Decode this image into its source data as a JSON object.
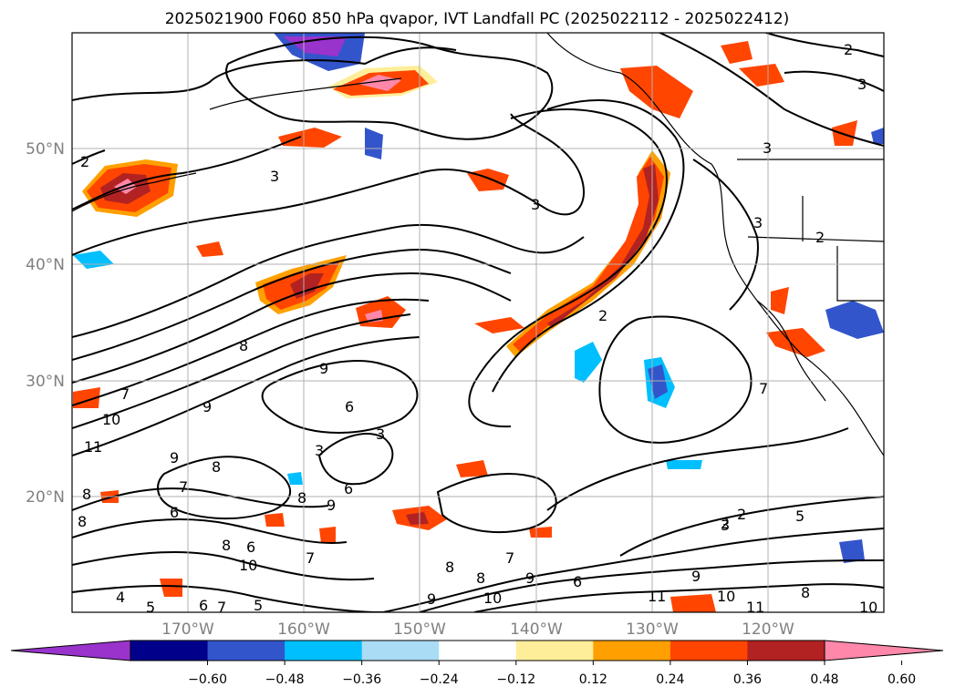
{
  "title": "2025021900 F060 850 hPa qvapor, IVT Landfall PC (2025022112 - 2025022412)",
  "lon_labels": [
    "170°W",
    "160°W",
    "150°W",
    "140°W",
    "130°W",
    "120°W"
  ],
  "lat_labels": [
    "50°N",
    "40°N",
    "30°N",
    "20°N"
  ],
  "colorbar": {
    "ticks": [
      "−0.60",
      "−0.48",
      "−0.36",
      "−0.24",
      "−0.12",
      "0.12",
      "0.24",
      "0.36",
      "0.48",
      "0.60"
    ],
    "under_color": "#9933cc",
    "over_color": "#ff88aa",
    "colors": [
      "#00008b",
      "#3355cc",
      "#00bfff",
      "#aadcf6",
      "#ffffff",
      "#ffee99",
      "#ffa000",
      "#ff4500",
      "#b22222"
    ]
  },
  "contour_labels": [
    {
      "text": "2"
    },
    {
      "text": "3"
    },
    {
      "text": "2"
    },
    {
      "text": "3"
    },
    {
      "text": "3"
    },
    {
      "text": "3"
    },
    {
      "text": "2"
    },
    {
      "text": "2"
    },
    {
      "text": "3"
    },
    {
      "text": "2"
    },
    {
      "text": "8"
    },
    {
      "text": "9"
    },
    {
      "text": "6"
    },
    {
      "text": "3"
    },
    {
      "text": "3"
    },
    {
      "text": "7"
    },
    {
      "text": "10"
    },
    {
      "text": "11"
    },
    {
      "text": "9"
    },
    {
      "text": "8"
    },
    {
      "text": "8"
    },
    {
      "text": "9"
    },
    {
      "text": "6"
    },
    {
      "text": "8"
    },
    {
      "text": "9"
    },
    {
      "text": "6"
    },
    {
      "text": "7"
    },
    {
      "text": "10"
    },
    {
      "text": "6"
    },
    {
      "text": "7"
    },
    {
      "text": "8"
    },
    {
      "text": "4"
    },
    {
      "text": "5"
    },
    {
      "text": "6"
    },
    {
      "text": "7"
    },
    {
      "text": "5"
    },
    {
      "text": "8"
    },
    {
      "text": "9"
    },
    {
      "text": "8"
    },
    {
      "text": "7"
    },
    {
      "text": "9"
    },
    {
      "text": "10"
    },
    {
      "text": "6"
    },
    {
      "text": "9"
    },
    {
      "text": "11"
    },
    {
      "text": "10"
    },
    {
      "text": "11"
    },
    {
      "text": "8"
    },
    {
      "text": "10"
    },
    {
      "text": "5"
    },
    {
      "text": "2"
    },
    {
      "text": "3"
    },
    {
      "text": "7"
    },
    {
      "text": "8"
    }
  ]
}
